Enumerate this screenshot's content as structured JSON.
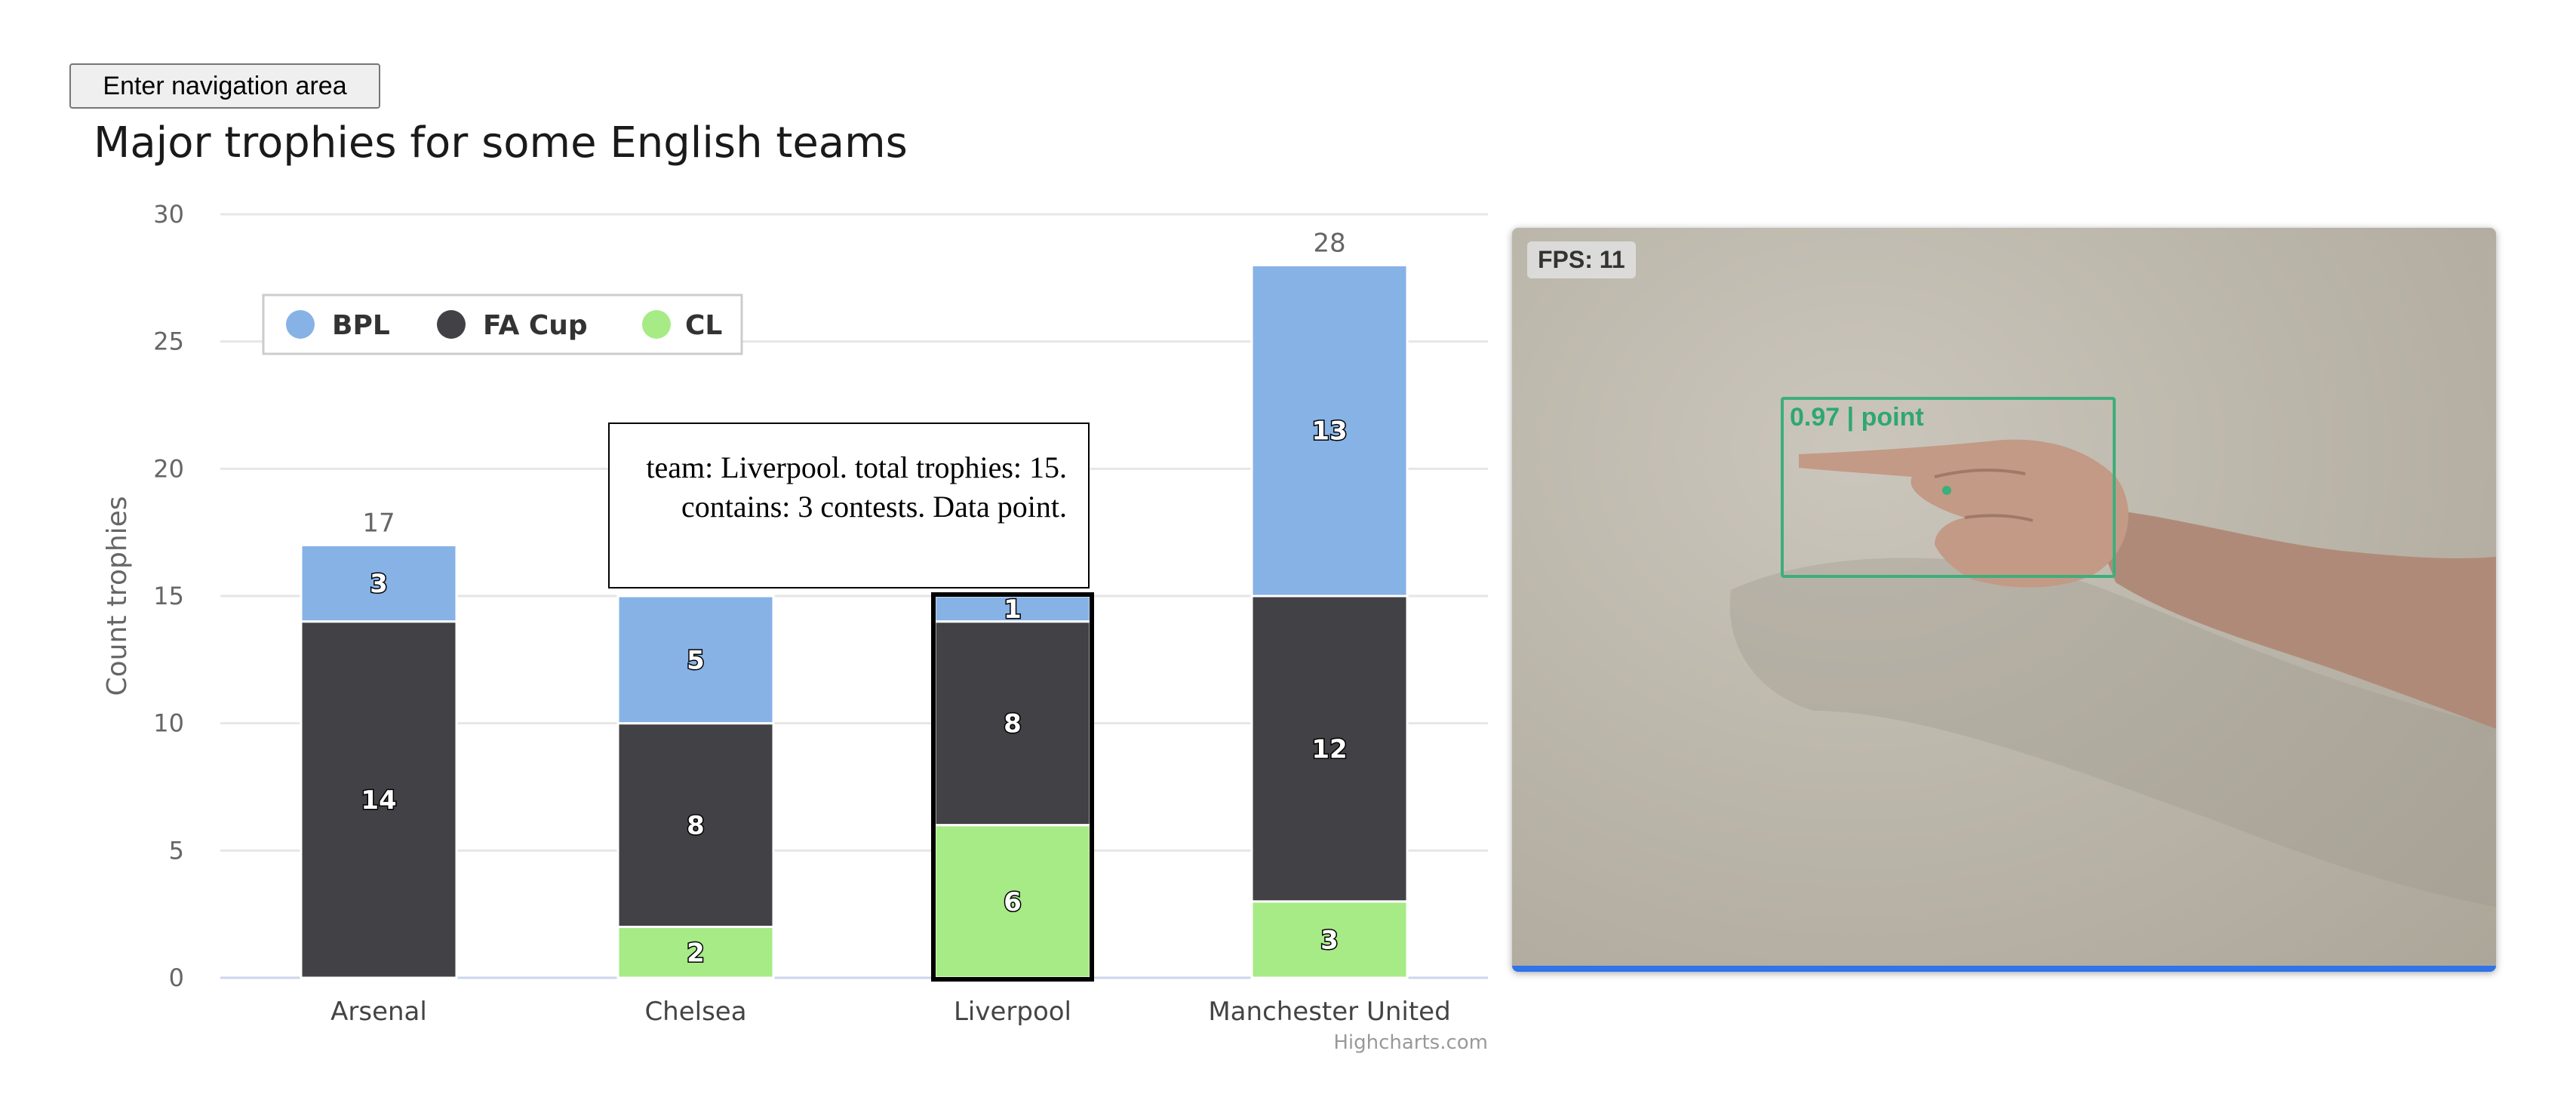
{
  "page": {
    "nav_button_label": "Enter navigation area"
  },
  "chart_data": {
    "type": "bar",
    "stacked": true,
    "title": "Major trophies for some English teams",
    "xlabel": "",
    "ylabel": "Count trophies",
    "ylim": [
      0,
      30
    ],
    "yticks": [
      0,
      5,
      10,
      15,
      20,
      25,
      30
    ],
    "grid": true,
    "legend_placement": "top-left",
    "categories": [
      "Arsenal",
      "Chelsea",
      "Liverpool",
      "Manchester United"
    ],
    "series": [
      {
        "name": "BPL",
        "color": "#86b2e6",
        "values": [
          3,
          5,
          1,
          13
        ]
      },
      {
        "name": "FA Cup",
        "color": "#414146",
        "values": [
          14,
          8,
          8,
          12
        ]
      },
      {
        "name": "CL",
        "color": "#a6eb85",
        "values": [
          0,
          2,
          6,
          3
        ]
      }
    ],
    "totals": [
      17,
      15,
      15,
      28
    ],
    "highlighted_category": "Liverpool",
    "credits": "Highcharts.com"
  },
  "tooltip": {
    "text": "team: Liverpool. total trophies: 15. contains: 3 contests. Data point."
  },
  "camera": {
    "fps_label": "FPS: 11",
    "detection_label": "0.97 | point",
    "accent_color": "#3dae7c",
    "bar_color": "#2f74e8"
  }
}
